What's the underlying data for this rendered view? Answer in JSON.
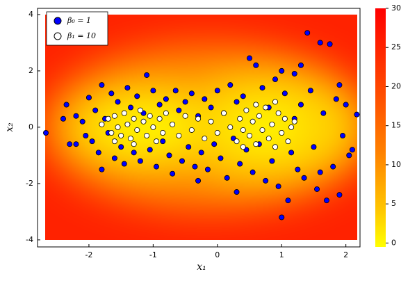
{
  "chart_data": {
    "type": "scatter",
    "xlabel": "x₁",
    "ylabel": "x₂",
    "xlim": [
      -2.8,
      2.22
    ],
    "ylim": [
      -4.25,
      4.22
    ],
    "xticks": [
      -2,
      -1,
      0,
      1,
      2
    ],
    "yticks": [
      -4,
      -2,
      0,
      2,
      4
    ],
    "legend": "top-left",
    "colorbar": {
      "lim": [
        -0.5,
        30
      ],
      "ticks": [
        0,
        5,
        10,
        15,
        20,
        25,
        30
      ]
    },
    "series": [
      {
        "name": "β₀ = 1",
        "color": "#0000ff",
        "x": [
          -2.67,
          -2.4,
          -2.35,
          -2.3,
          -2.2,
          -2.2,
          -2.1,
          -2.05,
          -2.0,
          -1.95,
          -1.9,
          -1.85,
          -1.8,
          -1.8,
          -1.75,
          -1.7,
          -1.65,
          -1.6,
          -1.55,
          -1.5,
          -1.45,
          -1.4,
          -1.35,
          -1.3,
          -1.25,
          -1.2,
          -1.15,
          -1.1,
          -1.05,
          -1.0,
          -0.95,
          -0.9,
          -0.85,
          -0.8,
          -0.75,
          -0.7,
          -0.65,
          -0.6,
          -0.55,
          -0.5,
          -0.45,
          -0.4,
          -0.35,
          -0.3,
          -0.25,
          -0.2,
          -0.15,
          -0.1,
          -0.05,
          0.0,
          0.05,
          0.1,
          0.15,
          0.2,
          0.25,
          0.3,
          0.35,
          0.4,
          0.45,
          0.5,
          0.55,
          0.6,
          0.65,
          0.7,
          0.75,
          0.8,
          0.85,
          0.9,
          0.95,
          1.0,
          1.05,
          1.1,
          1.15,
          1.2,
          1.25,
          1.3,
          1.35,
          1.4,
          1.45,
          1.5,
          1.55,
          1.6,
          1.65,
          1.7,
          1.75,
          1.8,
          1.85,
          1.9,
          1.9,
          1.95,
          2.0,
          2.05,
          2.1,
          2.17,
          1.3,
          1.0,
          0.3,
          -0.3,
          1.6,
          1.2
        ],
        "y": [
          -0.2,
          0.3,
          0.8,
          -0.6,
          -0.6,
          0.4,
          0.2,
          -0.3,
          1.05,
          -0.5,
          0.6,
          -0.9,
          1.5,
          -1.5,
          0.3,
          -0.2,
          1.2,
          -1.1,
          0.9,
          -0.7,
          -1.3,
          1.4,
          0.7,
          -0.9,
          1.1,
          -1.2,
          0.5,
          1.85,
          -0.8,
          1.3,
          -1.4,
          0.8,
          -0.5,
          1.0,
          -1.0,
          -1.65,
          1.3,
          0.6,
          -1.2,
          0.9,
          -0.7,
          1.2,
          -1.4,
          0.4,
          -0.9,
          1.0,
          -1.5,
          0.7,
          -0.6,
          1.3,
          -1.1,
          0.5,
          -1.8,
          1.5,
          -0.4,
          0.9,
          -1.3,
          1.1,
          -0.8,
          2.45,
          -1.6,
          2.2,
          -0.6,
          1.4,
          -1.9,
          0.7,
          -1.2,
          1.7,
          -2.1,
          -3.2,
          1.2,
          -2.6,
          -0.9,
          1.9,
          -1.5,
          0.8,
          -1.8,
          3.35,
          1.3,
          -0.7,
          -2.2,
          3.0,
          0.5,
          -2.6,
          2.95,
          -1.4,
          1.0,
          1.5,
          -2.4,
          -0.3,
          0.8,
          -1.0,
          -0.8,
          0.45,
          2.2,
          2.0,
          -2.3,
          -1.9,
          -1.6,
          0.3
        ]
      },
      {
        "name": "β₁ = 10",
        "color": "#ffffff",
        "x": [
          -1.8,
          -1.7,
          -1.65,
          -1.6,
          -1.55,
          -1.5,
          -1.45,
          -1.4,
          -1.35,
          -1.3,
          -1.25,
          -1.2,
          -1.15,
          -1.1,
          -1.05,
          -1.0,
          -0.95,
          -0.9,
          -0.85,
          -0.8,
          -0.7,
          -0.6,
          -0.5,
          -0.4,
          -0.3,
          -0.2,
          -0.1,
          0.0,
          0.1,
          0.2,
          0.3,
          0.35,
          0.4,
          0.45,
          0.5,
          0.55,
          0.6,
          0.65,
          0.7,
          0.75,
          0.8,
          0.85,
          0.9,
          0.95,
          1.0,
          1.05,
          1.1,
          1.15,
          1.2,
          0.6,
          0.9,
          0.4,
          -1.3,
          -1.6
        ],
        "y": [
          0.1,
          0.3,
          -0.2,
          0.4,
          0.0,
          -0.3,
          0.5,
          0.1,
          -0.4,
          0.3,
          -0.1,
          0.6,
          0.2,
          -0.3,
          0.4,
          0.0,
          -0.5,
          0.3,
          -0.2,
          0.5,
          0.1,
          -0.3,
          0.4,
          -0.1,
          0.3,
          -0.4,
          0.2,
          -0.2,
          0.5,
          0.0,
          -0.5,
          0.3,
          -0.1,
          0.6,
          -0.3,
          0.2,
          -0.6,
          0.4,
          -0.1,
          0.7,
          -0.4,
          0.1,
          -0.7,
          0.5,
          -0.2,
          0.3,
          -0.5,
          0.0,
          0.2,
          0.8,
          0.9,
          -0.7,
          -0.6,
          -0.5
        ]
      }
    ]
  }
}
